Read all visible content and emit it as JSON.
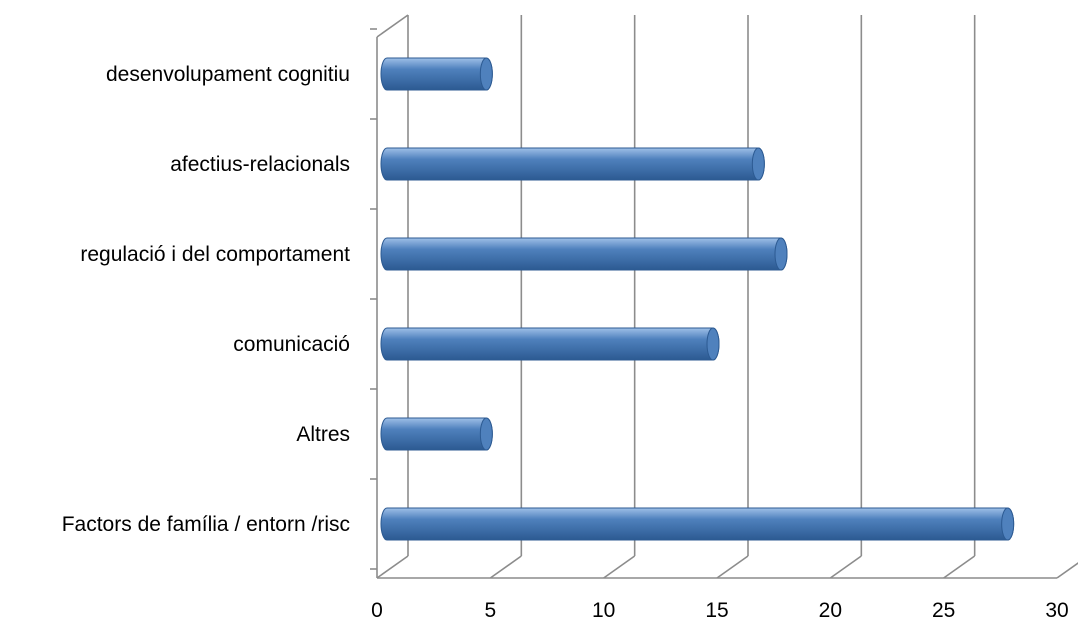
{
  "colors": {
    "bar": "#4f81bd",
    "bar_dark": "#2c5a92",
    "bar_light": "#9fc0e8",
    "grid": "#8c8c8c"
  },
  "chart_data": {
    "type": "bar",
    "orientation": "horizontal",
    "style": "3d-cylinder",
    "categories": [
      "desenvolupament cognitiu",
      "afectius-relacionals",
      "regulació i del comportament",
      "comunicació",
      "Altres",
      "Factors de família / entorn /risc"
    ],
    "values": [
      5,
      17,
      18,
      15,
      5,
      28
    ],
    "xlim": [
      0,
      30
    ],
    "x_ticks": [
      0,
      5,
      10,
      15,
      20,
      25,
      30
    ],
    "x_tick_labels": [
      "0",
      "5",
      "10",
      "15",
      "20",
      "25",
      "30"
    ],
    "grid": true,
    "legend": "none",
    "title": "",
    "xlabel": "",
    "ylabel": ""
  }
}
